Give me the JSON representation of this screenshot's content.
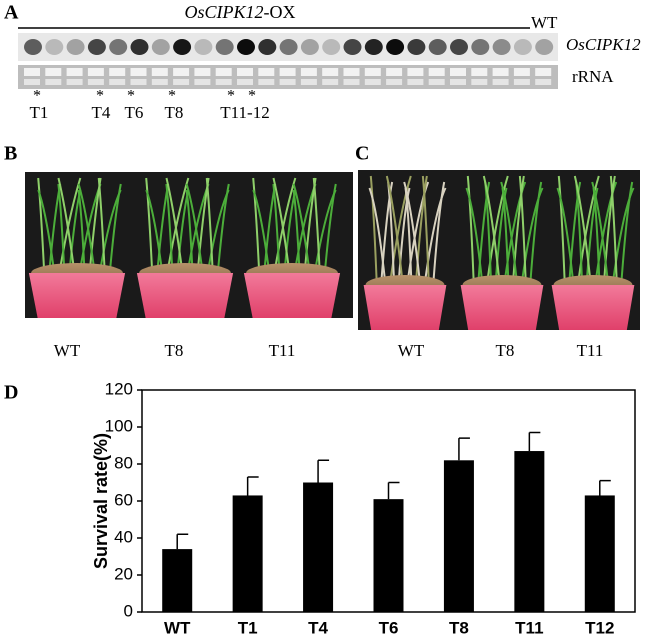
{
  "panels": {
    "a": {
      "letter": "A",
      "gene": "OsCIPK12",
      "suffix": "-OX",
      "control": "WT",
      "probe": "OsCIPK12",
      "loading": "rRNA",
      "stars": [
        "*",
        "*",
        "*",
        "*",
        "*",
        "*"
      ],
      "lines": [
        "T1",
        "T4",
        "T6",
        "T8",
        "T11-12"
      ]
    },
    "b": {
      "letter": "B",
      "labels": [
        "WT",
        "T8",
        "T11"
      ]
    },
    "c": {
      "letter": "C",
      "labels": [
        "WT",
        "T8",
        "T11"
      ]
    },
    "d": {
      "letter": "D"
    }
  },
  "chart_data": {
    "type": "bar",
    "y_label": "Survival rate(%)",
    "categories": [
      "WT",
      "T1",
      "T4",
      "T6",
      "T8",
      "T11",
      "T12"
    ],
    "values": [
      34,
      63,
      70,
      61,
      82,
      87,
      63
    ],
    "errors": [
      8,
      10,
      12,
      9,
      12,
      10,
      8
    ],
    "color": "#000000",
    "ylim": [
      0,
      120
    ],
    "yticks": [
      0,
      20,
      40,
      60,
      80,
      100,
      120
    ]
  }
}
